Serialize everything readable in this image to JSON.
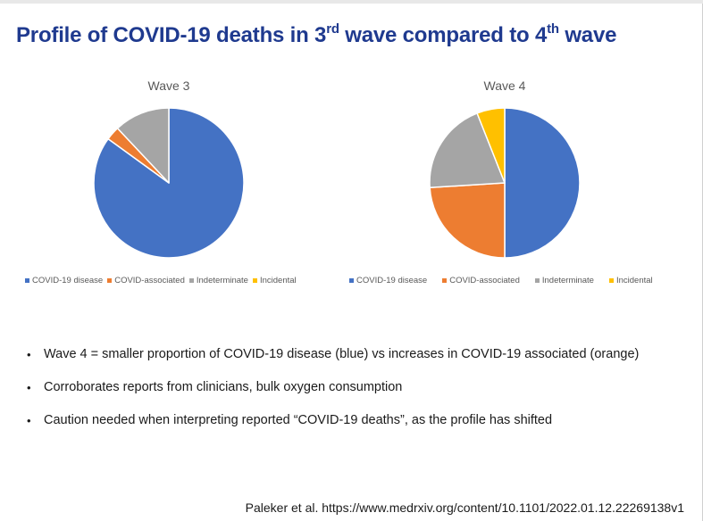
{
  "slide": {
    "title_main": "Profile of COVID-19 deaths in 3",
    "title_sup1": "rd",
    "title_mid": " wave compared to 4",
    "title_sup2": "th",
    "title_end": " wave"
  },
  "chart_data": [
    {
      "type": "pie",
      "title": "Wave 3",
      "categories": [
        "COVID-19 disease",
        "COVID-associated",
        "Indeterminate",
        "Incidental"
      ],
      "values": [
        85,
        3,
        12,
        0
      ],
      "colors": [
        "#4472c4",
        "#ed7d31",
        "#a5a5a5",
        "#ffc000"
      ],
      "legend": "bottom"
    },
    {
      "type": "pie",
      "title": "Wave 4",
      "categories": [
        "COVID-19 disease",
        "COVID-associated",
        "Indeterminate",
        "Incidental"
      ],
      "values": [
        50,
        24,
        20,
        6
      ],
      "colors": [
        "#4472c4",
        "#ed7d31",
        "#a5a5a5",
        "#ffc000"
      ],
      "legend": "bottom"
    }
  ],
  "bullets": [
    "Wave 4 = smaller proportion of COVID-19 disease (blue) vs increases in COVID-19 associated (orange)",
    "Corroborates reports from clinicians, bulk oxygen consumption",
    "Caution needed when interpreting reported “COVID-19 deaths”, as the profile has shifted"
  ],
  "citation": "Paleker et al. https://www.medrxiv.org/content/10.1101/2022.01.12.22269138v1"
}
